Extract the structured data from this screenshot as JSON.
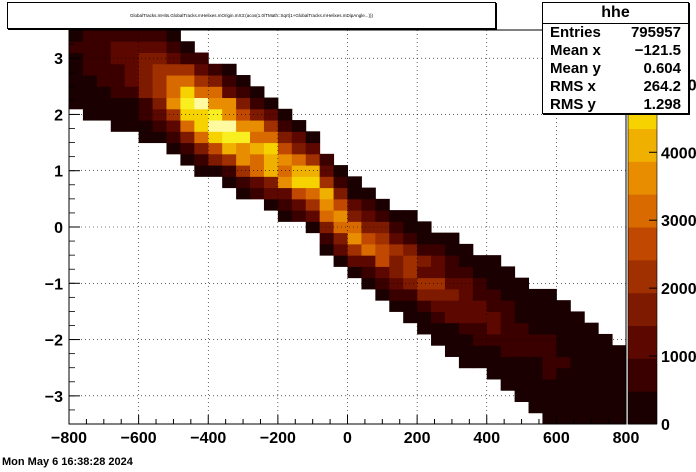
{
  "title": "GlobalTracks.mHits.GlobalTracks.mHelixes.mOrigin.mX3:(acos(1.0/TMath::Sqrt(1+GlobalTracks.mHelixes.mDipAngle...)))",
  "stats": {
    "name": "hhe",
    "rows": [
      {
        "label": "Entries",
        "value": "795957"
      },
      {
        "label": "Mean x",
        "value": "−121.5"
      },
      {
        "label": "Mean y",
        "value": "0.604"
      },
      {
        "label": "RMS x",
        "value": "264.2"
      },
      {
        "label": "RMS y",
        "value": "1.298"
      }
    ]
  },
  "timestamp": "Mon May  6 16:38:28 2024",
  "colors": {
    "palette": [
      "#1a0000",
      "#3a0000",
      "#5c0800",
      "#7e1a00",
      "#a03000",
      "#c04800",
      "#d86a00",
      "#e88c00",
      "#f0b000",
      "#f6d200",
      "#f8ee20",
      "#fffaa0"
    ]
  },
  "chart_data": {
    "type": "heatmap",
    "title": "GlobalTracks.mHits.GlobalTracks.mHelixes.mOrigin.mX3:(acos(1.0/TMath::Sqrt(1+GlobalTracks.mHelixes.mDipAngle...)))",
    "xlim": [
      -800,
      800
    ],
    "ylim": [
      -3.5,
      3.5
    ],
    "x_ticks": [
      "−800",
      "−600",
      "−400",
      "−200",
      "0",
      "200",
      "400",
      "600",
      "800"
    ],
    "x_tick_values": [
      -800,
      -600,
      -400,
      -200,
      0,
      200,
      400,
      600,
      800
    ],
    "y_ticks": [
      "−3",
      "−2",
      "−1",
      "0",
      "1",
      "2",
      "3"
    ],
    "y_tick_values": [
      -3,
      -2,
      -1,
      0,
      1,
      2,
      3
    ],
    "z_ticks": [
      "0",
      "1000",
      "2000",
      "3000",
      "4000",
      "5000"
    ],
    "z_tick_values": [
      0,
      1000,
      2000,
      3000,
      4000,
      5000
    ],
    "zlim": [
      0,
      5800
    ],
    "grid": true,
    "band": {
      "description_points": [
        {
          "x": -760,
          "y": 3.3,
          "z": 600
        },
        {
          "x": -600,
          "y": 2.8,
          "z": 1400
        },
        {
          "x": -400,
          "y": 2.0,
          "z": 5600
        },
        {
          "x": -250,
          "y": 1.4,
          "z": 4800
        },
        {
          "x": -100,
          "y": 0.8,
          "z": 4000
        },
        {
          "x": 0,
          "y": 0.0,
          "z": 3200
        },
        {
          "x": 150,
          "y": -0.6,
          "z": 2200
        },
        {
          "x": 300,
          "y": -1.2,
          "z": 1600
        },
        {
          "x": 450,
          "y": -1.8,
          "z": 900
        },
        {
          "x": 650,
          "y": -2.6,
          "z": 400
        },
        {
          "x": 780,
          "y": -3.3,
          "z": 200
        }
      ]
    }
  }
}
